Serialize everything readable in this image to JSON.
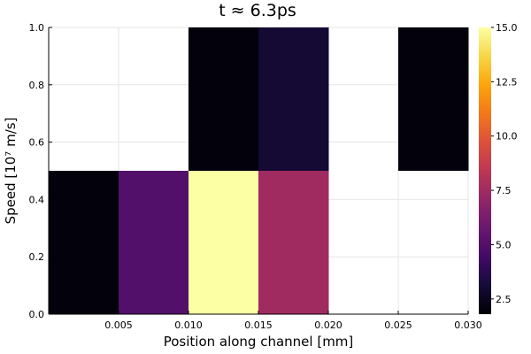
{
  "chart_data": {
    "type": "heatmap",
    "title": "t ≈ 6.3ps",
    "xlabel": "Position along channel [mm]",
    "ylabel": "Speed [10⁷ m/s]",
    "xlim": [
      0.0,
      0.03
    ],
    "ylim": [
      0.0,
      1.0
    ],
    "x_ticks": [
      {
        "value": 0.005,
        "label": "0.005"
      },
      {
        "value": 0.01,
        "label": "0.010"
      },
      {
        "value": 0.015,
        "label": "0.015"
      },
      {
        "value": 0.02,
        "label": "0.020"
      },
      {
        "value": 0.025,
        "label": "0.025"
      },
      {
        "value": 0.03,
        "label": "0.030"
      }
    ],
    "y_ticks": [
      {
        "value": 0.0,
        "label": "0.0"
      },
      {
        "value": 0.2,
        "label": "0.2"
      },
      {
        "value": 0.4,
        "label": "0.4"
      },
      {
        "value": 0.6,
        "label": "0.6"
      },
      {
        "value": 0.8,
        "label": "0.8"
      },
      {
        "value": 1.0,
        "label": "1.0"
      }
    ],
    "x_edges": [
      0.0,
      0.005,
      0.01,
      0.015,
      0.02,
      0.025,
      0.03
    ],
    "y_edges": [
      0.0,
      0.5,
      1.0
    ],
    "values": [
      [
        2.0,
        5.0,
        15.0,
        7.5,
        null,
        null
      ],
      [
        null,
        null,
        2.0,
        3.0,
        null,
        2.0
      ]
    ],
    "colorbar": {
      "colormap": "inferno",
      "clim": [
        1.8,
        15.0
      ],
      "ticks": [
        {
          "value": 2.5,
          "label": "2.5"
        },
        {
          "value": 5.0,
          "label": "5.0"
        },
        {
          "value": 7.5,
          "label": "7.5"
        },
        {
          "value": 10.0,
          "label": "10.0"
        },
        {
          "value": 12.5,
          "label": "12.5"
        },
        {
          "value": 15.0,
          "label": "15.0"
        }
      ]
    },
    "grid": true,
    "legend": "none"
  }
}
